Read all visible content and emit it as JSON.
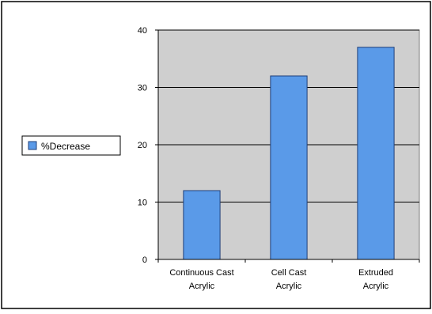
{
  "chart_data": {
    "type": "bar",
    "categories": [
      [
        "Continuous Cast",
        "Acrylic"
      ],
      [
        "Cell Cast",
        "Acrylic"
      ],
      [
        "Extruded",
        "Acrylic"
      ]
    ],
    "series": [
      {
        "name": "%Decrease",
        "values": [
          12,
          32,
          37
        ]
      }
    ],
    "ylim": [
      0,
      40
    ],
    "yticks": [
      0,
      10,
      20,
      30,
      40
    ],
    "grid": true,
    "legend": "left",
    "colors": {
      "bar": "#5a9ae8",
      "bar_stroke": "#1f3f7a",
      "plot_bg": "#cfcfcf",
      "gridline": "#000000"
    }
  }
}
